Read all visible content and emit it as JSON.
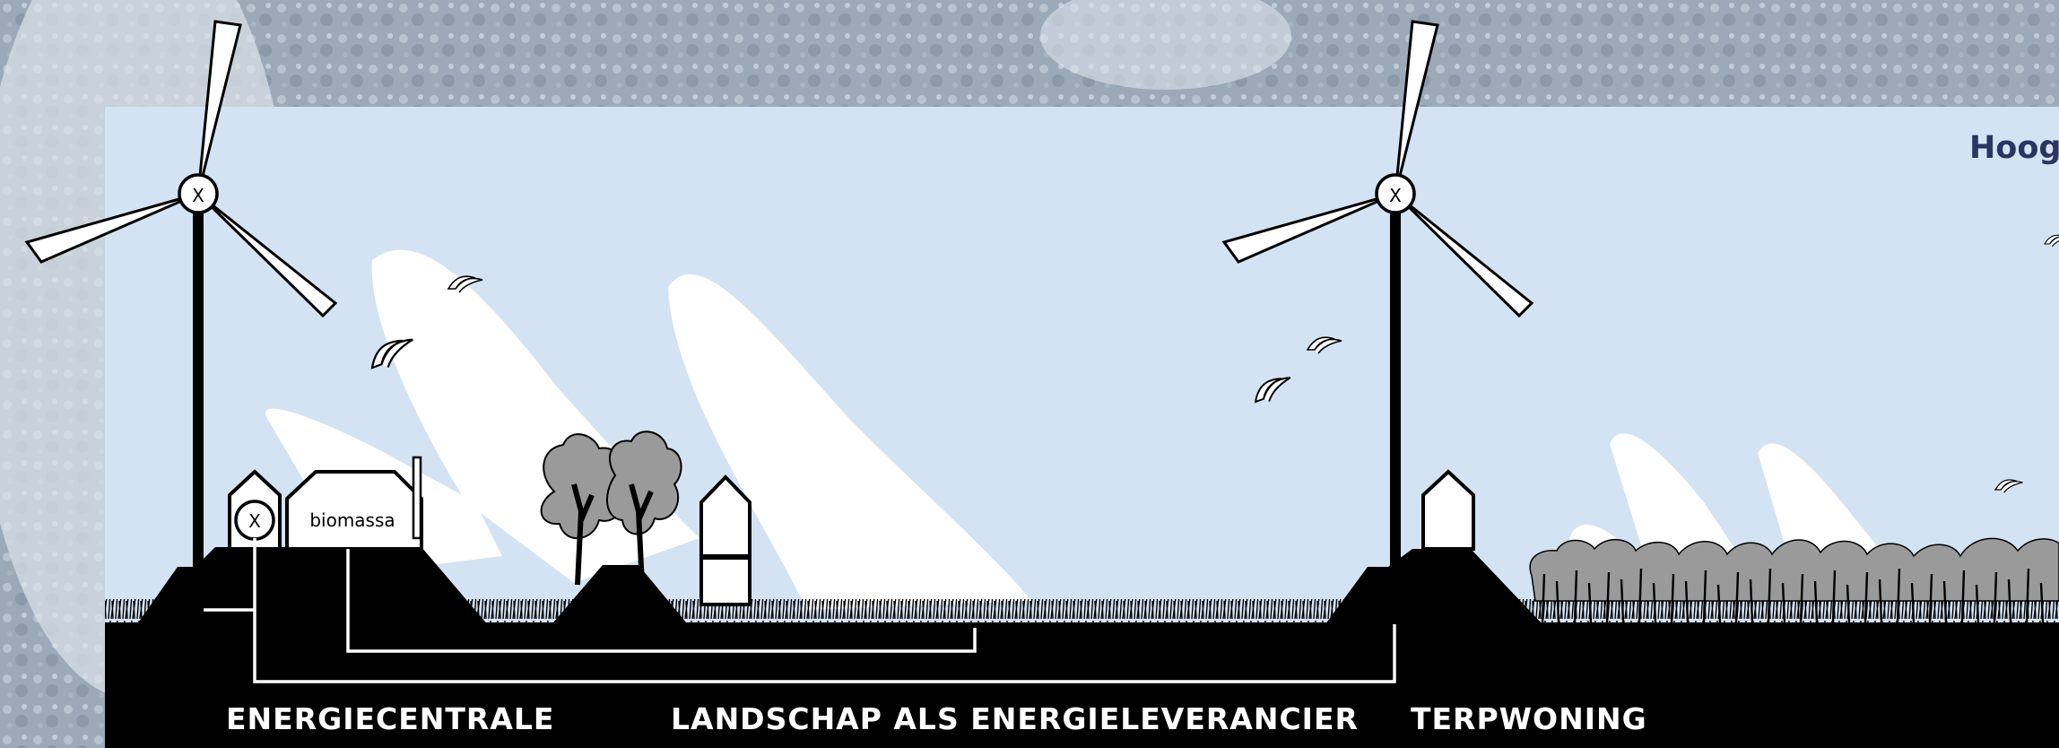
{
  "header": {
    "title": "Hoog"
  },
  "buildings": {
    "biomass_label": "biomassa",
    "generator_symbol": "X"
  },
  "turbines": {
    "hub_symbol": "X"
  },
  "sections": {
    "energy_plant": "ENERGIECENTRALE",
    "landscape": "LANDSCHAP ALS ENERGIELEVERANCIER",
    "mound_dwelling": "TERPWONING"
  },
  "colors": {
    "sky": "#d3e3f3",
    "ground": "#000000",
    "tree_fill": "#9a9a9a",
    "title": "#2b3560",
    "backdrop": "#9aa8b8"
  }
}
